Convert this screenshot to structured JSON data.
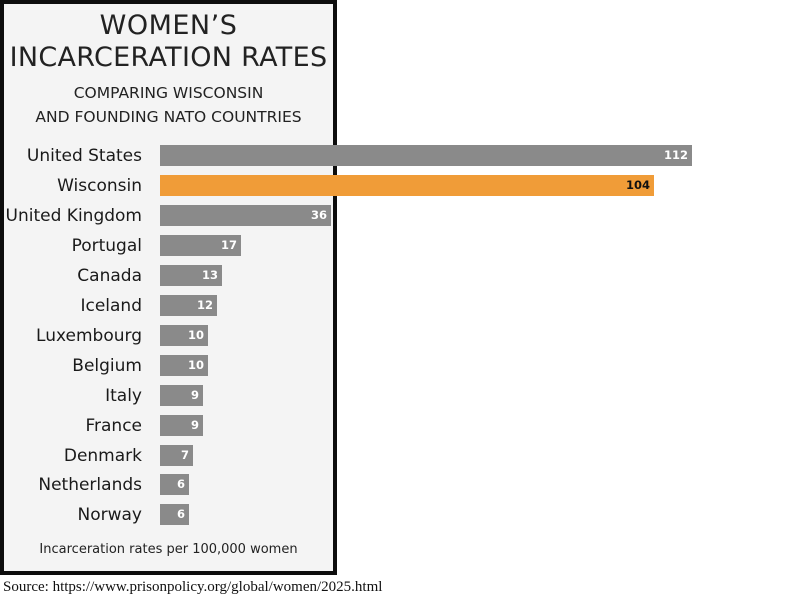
{
  "header": {
    "title_line1": "WOMEN’S",
    "title_line2": "INCARCERATION RATES",
    "subtitle_line1": "COMPARING WISCONSIN",
    "subtitle_line2": "AND FOUNDING NATO COUNTRIES"
  },
  "footnote": "Incarceration rates per 100,000 women",
  "source": "Source: https://www.prisonpolicy.org/global/women/2025.html",
  "colors": {
    "bar": "#8a8a8a",
    "highlight": "#f09c38",
    "panel": "#f4f4f4",
    "border": "#0d0d0d"
  },
  "rows": [
    {
      "label": "United States",
      "value": "112"
    },
    {
      "label": "Wisconsin",
      "value": "104"
    },
    {
      "label": "United Kingdom",
      "value": "36"
    },
    {
      "label": "Portugal",
      "value": "17"
    },
    {
      "label": "Canada",
      "value": "13"
    },
    {
      "label": "Iceland",
      "value": "12"
    },
    {
      "label": "Luxembourg",
      "value": "10"
    },
    {
      "label": "Belgium",
      "value": "10"
    },
    {
      "label": "Italy",
      "value": "9"
    },
    {
      "label": "France",
      "value": "9"
    },
    {
      "label": "Denmark",
      "value": "7"
    },
    {
      "label": "Netherlands",
      "value": "6"
    },
    {
      "label": "Norway",
      "value": "6"
    }
  ],
  "chart_data": {
    "type": "bar",
    "orientation": "horizontal",
    "title": "WOMEN’S INCARCERATION RATES",
    "subtitle": "COMPARING WISCONSIN AND FOUNDING NATO COUNTRIES",
    "categories": [
      "United States",
      "Wisconsin",
      "United Kingdom",
      "Portugal",
      "Canada",
      "Iceland",
      "Luxembourg",
      "Belgium",
      "Italy",
      "France",
      "Denmark",
      "Netherlands",
      "Norway"
    ],
    "values": [
      112,
      104,
      36,
      17,
      13,
      12,
      10,
      10,
      9,
      9,
      7,
      6,
      6
    ],
    "highlight": "Wisconsin",
    "xlabel": "Incarceration rates per 100,000 women",
    "ylabel": "",
    "grid": false,
    "legend": null,
    "data_labels": true,
    "source": "Source: https://www.prisonpolicy.org/global/women/2025.html"
  }
}
